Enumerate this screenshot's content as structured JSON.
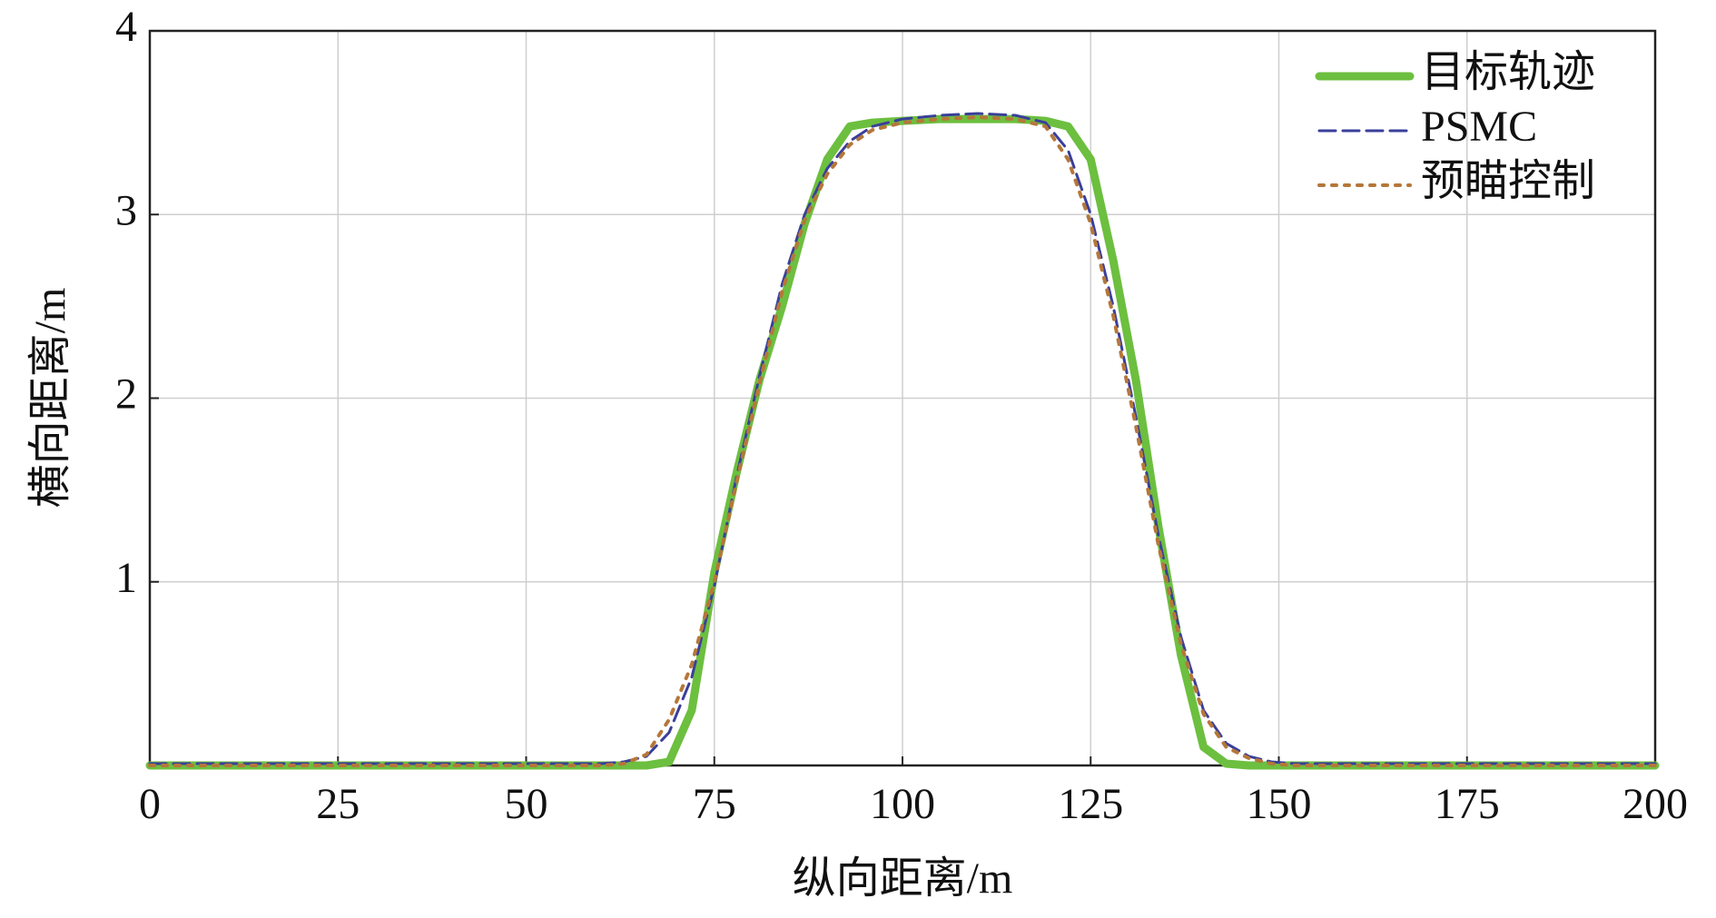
{
  "chart_data": {
    "type": "line",
    "x_label": "纵向距离/m",
    "y_label": "横向距离/m",
    "x": [
      0,
      20,
      40,
      60,
      63,
      66,
      69,
      72,
      75,
      78,
      81,
      84,
      87,
      90,
      93,
      96,
      100,
      105,
      110,
      115,
      119,
      122,
      125,
      128,
      131,
      134,
      137,
      140,
      143,
      146,
      149,
      152,
      155,
      160,
      180,
      200
    ],
    "series": [
      {
        "name": "目标轨迹",
        "color": "#6cbf3f",
        "style": "solid",
        "values": [
          0,
          0,
          0,
          0,
          0,
          0,
          0.02,
          0.3,
          1.05,
          1.6,
          2.1,
          2.5,
          2.95,
          3.3,
          3.48,
          3.5,
          3.51,
          3.52,
          3.52,
          3.52,
          3.51,
          3.48,
          3.3,
          2.75,
          2.1,
          1.3,
          0.6,
          0.1,
          0.01,
          0,
          0,
          0,
          0,
          0,
          0,
          0
        ]
      },
      {
        "name": "PSMC",
        "color": "#3a3f9a",
        "style": "dashed",
        "values": [
          0.01,
          0.01,
          0.01,
          0.01,
          0.02,
          0.05,
          0.18,
          0.48,
          0.98,
          1.58,
          2.12,
          2.62,
          3.0,
          3.25,
          3.4,
          3.48,
          3.52,
          3.54,
          3.55,
          3.54,
          3.5,
          3.35,
          3.0,
          2.5,
          1.9,
          1.25,
          0.7,
          0.3,
          0.12,
          0.05,
          0.02,
          0.01,
          0.01,
          0.01,
          0.01,
          0.01
        ]
      },
      {
        "name": "预瞄控制",
        "color": "#b5773a",
        "style": "dotted",
        "values": [
          0,
          0,
          0,
          0,
          0.01,
          0.06,
          0.25,
          0.55,
          1.0,
          1.55,
          2.08,
          2.58,
          2.97,
          3.22,
          3.38,
          3.46,
          3.5,
          3.52,
          3.53,
          3.52,
          3.48,
          3.3,
          2.95,
          2.45,
          1.85,
          1.2,
          0.66,
          0.28,
          0.1,
          0.04,
          0.01,
          0,
          0,
          0,
          0,
          0
        ]
      }
    ],
    "xlim": [
      0,
      200
    ],
    "xticks": [
      0,
      25,
      50,
      75,
      100,
      125,
      150,
      175,
      200
    ],
    "ylim": [
      0,
      4
    ],
    "yticks": [
      1,
      2,
      3,
      4
    ],
    "grid": true,
    "legend": "top-right"
  }
}
